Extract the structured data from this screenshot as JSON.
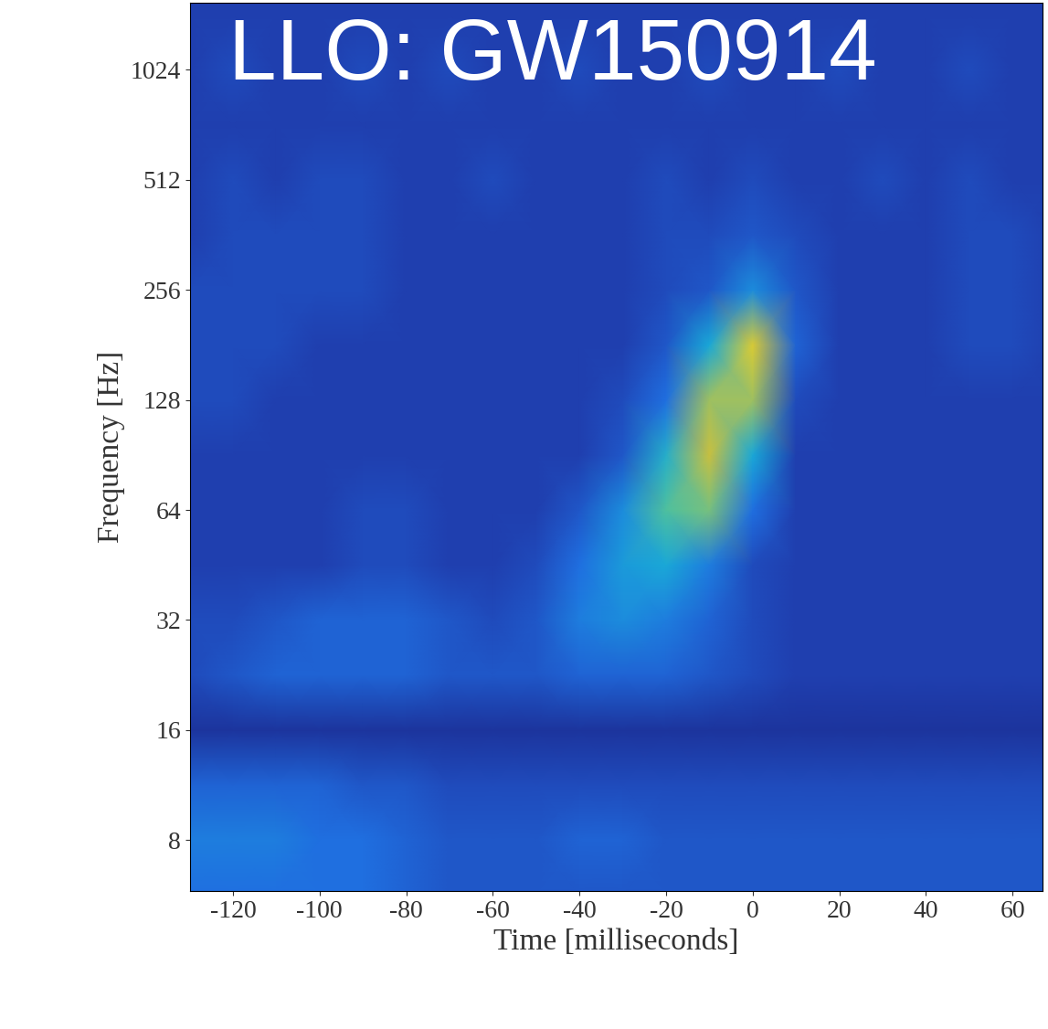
{
  "chart_data": {
    "type": "heatmap",
    "title": "LLO: GW150914",
    "x_label": "Time [milliseconds]",
    "y_label": "Frequency [Hz]",
    "log": "y",
    "x": [
      -130,
      -120,
      -110,
      -100,
      -90,
      -80,
      -70,
      -60,
      -50,
      -40,
      -30,
      -20,
      -10,
      0,
      10,
      20,
      30,
      40,
      50,
      60,
      70
    ],
    "y": [
      5.7,
      8,
      11.3,
      16,
      22.6,
      32,
      45.3,
      64,
      90.5,
      128,
      181,
      256,
      362,
      512,
      724,
      1024,
      1448,
      2048
    ],
    "xlim": [
      -130,
      67
    ],
    "ylim": [
      5.8,
      1560
    ],
    "xticks": [
      -120,
      -100,
      -80,
      -60,
      -40,
      -20,
      0,
      20,
      40,
      60
    ],
    "yticks": [
      8,
      16,
      32,
      64,
      128,
      256,
      512,
      1024
    ],
    "zlim": [
      0,
      10
    ],
    "cells": [
      [
        3,
        3,
        3,
        3,
        3,
        2.5,
        2,
        2,
        2,
        2,
        2,
        2,
        2,
        2,
        2,
        2,
        2,
        2,
        2,
        2,
        2
      ],
      [
        3.5,
        3.5,
        3.5,
        3,
        3,
        2.5,
        2,
        2,
        2,
        2.5,
        2.5,
        2,
        2,
        2,
        2,
        2,
        2,
        2,
        2,
        2,
        2
      ],
      [
        2.5,
        2.5,
        2.5,
        2.5,
        2,
        2,
        1.5,
        1.5,
        1.5,
        1.5,
        1.5,
        1.5,
        1.5,
        1.5,
        1.5,
        1.5,
        1.5,
        1.5,
        1.5,
        1.5,
        1.5
      ],
      [
        0.5,
        0.5,
        0.5,
        0.5,
        0.5,
        0.5,
        0.5,
        0.5,
        0.5,
        0.5,
        0.5,
        0.5,
        0.5,
        0.5,
        0.5,
        0.5,
        0.5,
        0.5,
        0.5,
        0.5,
        0.5
      ],
      [
        1.5,
        2,
        2.5,
        2.5,
        2.5,
        2.5,
        2,
        2,
        2,
        2.5,
        2.5,
        2.5,
        2,
        1.5,
        1,
        1,
        1,
        1,
        1,
        1,
        1
      ],
      [
        1.5,
        1.5,
        2,
        2.5,
        2.5,
        2.5,
        2,
        1.5,
        2,
        3.5,
        4,
        3.5,
        2.5,
        1.5,
        1,
        1,
        1,
        1,
        1,
        1,
        1
      ],
      [
        1,
        1,
        1,
        1,
        1.5,
        1.5,
        1,
        1,
        1.5,
        3,
        4.5,
        5,
        3.5,
        1.5,
        1,
        1,
        1,
        1,
        1,
        1,
        1
      ],
      [
        1,
        1,
        1,
        1,
        1.5,
        1.5,
        1,
        1,
        1,
        2,
        4,
        7,
        7.5,
        3,
        1,
        1,
        1,
        1,
        1,
        1,
        1
      ],
      [
        1,
        1,
        1,
        1,
        1,
        1,
        1,
        1,
        1,
        1,
        2,
        5.5,
        8.5,
        5,
        1,
        1,
        1,
        1,
        1,
        1,
        1
      ],
      [
        1.5,
        1.5,
        1,
        1,
        1,
        1,
        1,
        1,
        1,
        1,
        1.5,
        3,
        8,
        8,
        1.5,
        1,
        1,
        1,
        1,
        1,
        1
      ],
      [
        1.5,
        1.5,
        1.5,
        1,
        1,
        1,
        1,
        1,
        1,
        1,
        1,
        2,
        5,
        9,
        2.5,
        1,
        1,
        1,
        1.5,
        1.5,
        1
      ],
      [
        1.5,
        1.5,
        1.5,
        1.5,
        1.5,
        1,
        1,
        1,
        1,
        1,
        1,
        1.5,
        2,
        4,
        2,
        1,
        1,
        1,
        1.5,
        1.5,
        1
      ],
      [
        1,
        1.5,
        1.5,
        1.5,
        1.5,
        1,
        1,
        1,
        1,
        1,
        1,
        1.5,
        1.5,
        2,
        1.5,
        1,
        1,
        1,
        1.5,
        1.5,
        1
      ],
      [
        1,
        1.5,
        1,
        1.5,
        1.5,
        1,
        1,
        1.5,
        1,
        1,
        1,
        1.5,
        1,
        1.5,
        1,
        1,
        1.5,
        1,
        1.5,
        1,
        1
      ],
      [
        1,
        1,
        1,
        1,
        1,
        1,
        1,
        1,
        1,
        1,
        1,
        1,
        1,
        1,
        1,
        1,
        1,
        1,
        1,
        1,
        1
      ],
      [
        1,
        1.5,
        1,
        1,
        1.5,
        1,
        1.5,
        1,
        1,
        1.5,
        1,
        1,
        1.5,
        1,
        1,
        1.5,
        1,
        1,
        1.5,
        1,
        1
      ],
      [
        1,
        1,
        1,
        1,
        1,
        1,
        1,
        1,
        1,
        1,
        1,
        1,
        1,
        1,
        1,
        1,
        1,
        1,
        1,
        1,
        1
      ],
      [
        1,
        1,
        1,
        1,
        1,
        1,
        1,
        1,
        1,
        1,
        1,
        1,
        1,
        1,
        1,
        1,
        1,
        1,
        1,
        1,
        1
      ]
    ]
  }
}
